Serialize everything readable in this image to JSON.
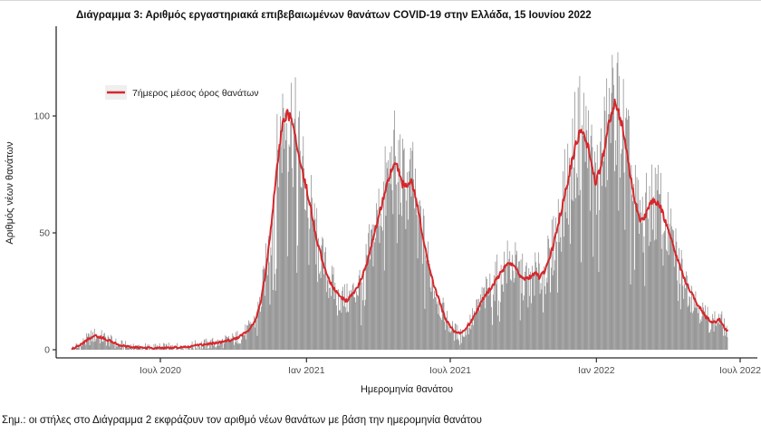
{
  "title": "Διάγραμμα 3: Αριθμός εργαστηριακά επιβεβαιωμένων θανάτων COVID-19 στην Ελλάδα, 15 Ιουνίου 2022",
  "footnote": "Σημ.: οι στήλες στο Διάγραμμα 2 εκφράζουν τον αριθμό νέων θανάτων με βάση την ημερομηνία θανάτου",
  "chart_data": {
    "type": "bar",
    "subtype": "daily-bars-with-7day-average-line",
    "title": "Διάγραμμα 3: Αριθμός εργαστηριακά επιβεβαιωμένων θανάτων COVID-19 στην Ελλάδα, 15 Ιουνίου 2022",
    "xlabel": "Ημερομηνία θανάτου",
    "ylabel": "Αριθμός νέων θανάτων",
    "legend": {
      "label": "7ήμερος μέσος όρος θανάτων",
      "position": "top-left-inside"
    },
    "colors": {
      "bar": "#7f7f7f",
      "line": "#d6272c",
      "axis": "#2b2b2b"
    },
    "grid": false,
    "ylim": [
      0,
      135
    ],
    "y_ticks": [
      0,
      50,
      100
    ],
    "x_ticks": [
      {
        "date": "2020-07-01",
        "label": "Ιουλ 2020"
      },
      {
        "date": "2021-01-01",
        "label": "Ιαν 2021"
      },
      {
        "date": "2021-07-01",
        "label": "Ιουλ 2021"
      },
      {
        "date": "2022-01-01",
        "label": "Ιαν 2022"
      },
      {
        "date": "2022-07-01",
        "label": "Ιουλ 2022"
      }
    ],
    "x_range": [
      "2020-03-12",
      "2022-06-15"
    ],
    "bar_noise": {
      "base": 2,
      "factor": 0.27,
      "dip_chance": 0.08,
      "dip_scale": 0.5
    },
    "avg_series_7day": [
      [
        "2020-03-12",
        0.3
      ],
      [
        "2020-03-16",
        1
      ],
      [
        "2020-03-22",
        2
      ],
      [
        "2020-03-28",
        3.5
      ],
      [
        "2020-04-03",
        5
      ],
      [
        "2020-04-09",
        6
      ],
      [
        "2020-04-15",
        5.5
      ],
      [
        "2020-04-21",
        5
      ],
      [
        "2020-04-27",
        4
      ],
      [
        "2020-05-03",
        3
      ],
      [
        "2020-05-10",
        2
      ],
      [
        "2020-05-17",
        1.5
      ],
      [
        "2020-05-24",
        1.2
      ],
      [
        "2020-06-01",
        1
      ],
      [
        "2020-06-10",
        0.8
      ],
      [
        "2020-06-20",
        0.7
      ],
      [
        "2020-07-01",
        0.8
      ],
      [
        "2020-07-10",
        0.8
      ],
      [
        "2020-07-20",
        1
      ],
      [
        "2020-08-01",
        1.2
      ],
      [
        "2020-08-10",
        1.5
      ],
      [
        "2020-08-20",
        2
      ],
      [
        "2020-09-01",
        2.5
      ],
      [
        "2020-09-10",
        3
      ],
      [
        "2020-09-20",
        3.5
      ],
      [
        "2020-10-01",
        4.5
      ],
      [
        "2020-10-08",
        5.5
      ],
      [
        "2020-10-15",
        7
      ],
      [
        "2020-10-22",
        9
      ],
      [
        "2020-10-29",
        13
      ],
      [
        "2020-11-04",
        20
      ],
      [
        "2020-11-10",
        32
      ],
      [
        "2020-11-16",
        48
      ],
      [
        "2020-11-21",
        65
      ],
      [
        "2020-11-26",
        82
      ],
      [
        "2020-12-01",
        95
      ],
      [
        "2020-12-05",
        100
      ],
      [
        "2020-12-09",
        101
      ],
      [
        "2020-12-13",
        98
      ],
      [
        "2020-12-17",
        92
      ],
      [
        "2020-12-22",
        84
      ],
      [
        "2020-12-27",
        76
      ],
      [
        "2021-01-01",
        69
      ],
      [
        "2021-01-06",
        61
      ],
      [
        "2021-01-11",
        52
      ],
      [
        "2021-01-16",
        44
      ],
      [
        "2021-01-22",
        37
      ],
      [
        "2021-01-28",
        31
      ],
      [
        "2021-02-03",
        27
      ],
      [
        "2021-02-09",
        24
      ],
      [
        "2021-02-15",
        22
      ],
      [
        "2021-02-21",
        21
      ],
      [
        "2021-02-27",
        23
      ],
      [
        "2021-03-05",
        26
      ],
      [
        "2021-03-11",
        30
      ],
      [
        "2021-03-17",
        36
      ],
      [
        "2021-03-23",
        44
      ],
      [
        "2021-03-29",
        52
      ],
      [
        "2021-04-04",
        60
      ],
      [
        "2021-04-10",
        68
      ],
      [
        "2021-04-16",
        75
      ],
      [
        "2021-04-22",
        80
      ],
      [
        "2021-04-27",
        77
      ],
      [
        "2021-05-02",
        71
      ],
      [
        "2021-05-08",
        69
      ],
      [
        "2021-05-13",
        72
      ],
      [
        "2021-05-18",
        66
      ],
      [
        "2021-05-24",
        55
      ],
      [
        "2021-05-30",
        44
      ],
      [
        "2021-06-05",
        34
      ],
      [
        "2021-06-11",
        27
      ],
      [
        "2021-06-17",
        21
      ],
      [
        "2021-06-23",
        15
      ],
      [
        "2021-06-29",
        11
      ],
      [
        "2021-07-05",
        8
      ],
      [
        "2021-07-11",
        7
      ],
      [
        "2021-07-17",
        8
      ],
      [
        "2021-07-23",
        10
      ],
      [
        "2021-07-29",
        13
      ],
      [
        "2021-08-04",
        17
      ],
      [
        "2021-08-10",
        21
      ],
      [
        "2021-08-16",
        24
      ],
      [
        "2021-08-22",
        27
      ],
      [
        "2021-08-28",
        30
      ],
      [
        "2021-09-03",
        33
      ],
      [
        "2021-09-09",
        36
      ],
      [
        "2021-09-15",
        37
      ],
      [
        "2021-09-21",
        35
      ],
      [
        "2021-09-27",
        32
      ],
      [
        "2021-10-03",
        30
      ],
      [
        "2021-10-09",
        31
      ],
      [
        "2021-10-15",
        33
      ],
      [
        "2021-10-21",
        31
      ],
      [
        "2021-10-27",
        33
      ],
      [
        "2021-11-02",
        38
      ],
      [
        "2021-11-08",
        45
      ],
      [
        "2021-11-14",
        54
      ],
      [
        "2021-11-20",
        63
      ],
      [
        "2021-11-26",
        72
      ],
      [
        "2021-12-02",
        82
      ],
      [
        "2021-12-07",
        89
      ],
      [
        "2021-12-12",
        93
      ],
      [
        "2021-12-17",
        92
      ],
      [
        "2021-12-22",
        86
      ],
      [
        "2021-12-27",
        77
      ],
      [
        "2021-12-31",
        72
      ],
      [
        "2022-01-04",
        75
      ],
      [
        "2022-01-08",
        81
      ],
      [
        "2022-01-12",
        88
      ],
      [
        "2022-01-16",
        95
      ],
      [
        "2022-01-20",
        101
      ],
      [
        "2022-01-24",
        105
      ],
      [
        "2022-01-28",
        103
      ],
      [
        "2022-02-01",
        98
      ],
      [
        "2022-02-05",
        91
      ],
      [
        "2022-02-09",
        83
      ],
      [
        "2022-02-13",
        74
      ],
      [
        "2022-02-17",
        66
      ],
      [
        "2022-02-21",
        60
      ],
      [
        "2022-02-25",
        56
      ],
      [
        "2022-03-01",
        55
      ],
      [
        "2022-03-06",
        59
      ],
      [
        "2022-03-11",
        63
      ],
      [
        "2022-03-16",
        64
      ],
      [
        "2022-03-21",
        62
      ],
      [
        "2022-03-26",
        58
      ],
      [
        "2022-03-31",
        53
      ],
      [
        "2022-04-05",
        47
      ],
      [
        "2022-04-10",
        42
      ],
      [
        "2022-04-15",
        37
      ],
      [
        "2022-04-20",
        32
      ],
      [
        "2022-04-25",
        28
      ],
      [
        "2022-05-01",
        24
      ],
      [
        "2022-05-07",
        20
      ],
      [
        "2022-05-13",
        17
      ],
      [
        "2022-05-19",
        14
      ],
      [
        "2022-05-25",
        12
      ],
      [
        "2022-05-31",
        12
      ],
      [
        "2022-06-05",
        13
      ],
      [
        "2022-06-09",
        11
      ],
      [
        "2022-06-12",
        9
      ],
      [
        "2022-06-15",
        8
      ]
    ]
  }
}
